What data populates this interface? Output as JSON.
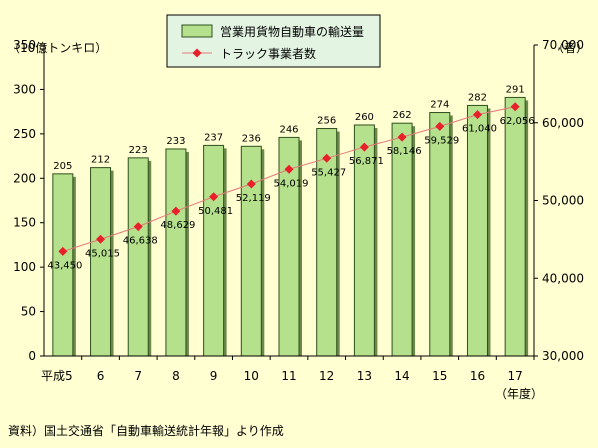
{
  "source_note": "資料）国土交通省「自動車輸送統計年報」より作成",
  "colors": {
    "background": "#ffffd2",
    "bar_fill": "#b5e08c",
    "bar_stroke": "#2f4f1f",
    "line": "#e8767a",
    "marker": "#e8202a"
  },
  "chart_data": {
    "type": "bar",
    "combined_with": "line",
    "categories": [
      "平成5",
      "6",
      "7",
      "8",
      "9",
      "10",
      "11",
      "12",
      "13",
      "14",
      "15",
      "16",
      "17"
    ],
    "x_unit_label": "（年度）",
    "y_left": {
      "unit_label": "（10億トンキロ）",
      "ylim": [
        0,
        350
      ],
      "ticks": [
        0,
        50,
        100,
        150,
        200,
        250,
        300,
        350
      ]
    },
    "y_right": {
      "unit_label": "（者）",
      "ylim": [
        30000,
        70000
      ],
      "ticks": [
        "30,000",
        "40,000",
        "50,000",
        "60,000",
        "70,000"
      ]
    },
    "grid": false,
    "legend_placement": "top",
    "series": [
      {
        "name": "営業用貨物自動車の輸送量",
        "axis": "left",
        "kind": "bar",
        "values": [
          205,
          212,
          223,
          233,
          237,
          236,
          246,
          256,
          260,
          262,
          274,
          282,
          291
        ],
        "labels": [
          "205",
          "212",
          "223",
          "233",
          "237",
          "236",
          "246",
          "256",
          "260",
          "262",
          "274",
          "282",
          "291"
        ]
      },
      {
        "name": "トラック事業者数",
        "axis": "right",
        "kind": "line",
        "values": [
          43450,
          45015,
          46638,
          48629,
          50481,
          52119,
          54019,
          55427,
          56871,
          58146,
          59529,
          61040,
          62056
        ],
        "labels": [
          "43,450",
          "45,015",
          "46,638",
          "48,629",
          "50,481",
          "52,119",
          "54,019",
          "55,427",
          "56,871",
          "58,146",
          "59,529",
          "61,040",
          "62,056"
        ]
      }
    ]
  }
}
